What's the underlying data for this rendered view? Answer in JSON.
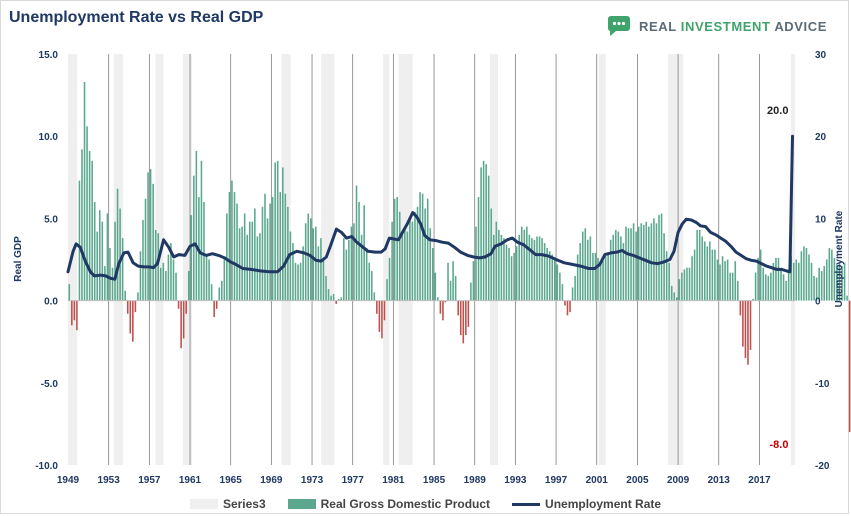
{
  "header": {
    "title": "Unemployment Rate vs Real GDP",
    "brand": {
      "w1": "REAL",
      "w2": "INVESTMENT",
      "w3": "ADVICE"
    }
  },
  "colors": {
    "recession": "#efefef",
    "gdp_positive": "#5ba88e",
    "gdp_negative": "#c0504d",
    "unemployment": "#1f3864",
    "brand_icon": "#3fa36b",
    "year_lines": "#7f7f7f"
  },
  "chart_data": {
    "type": "bar",
    "title": "Unemployment Rate vs Real GDP",
    "xlabel": "",
    "ylabel_left": "Real GDP",
    "ylabel_right": "Unemployment Rate",
    "x_range": [
      1949.0,
      2020.5
    ],
    "ylim_left": [
      -10,
      15
    ],
    "ylim_right": [
      -20,
      30
    ],
    "left_ticks": [
      {
        "value": 15,
        "label": "15.0"
      },
      {
        "value": 10,
        "label": "10.0"
      },
      {
        "value": 5,
        "label": "5.0"
      },
      {
        "value": 0,
        "label": "0.0"
      },
      {
        "value": -5,
        "label": "-5.0"
      },
      {
        "value": -10,
        "label": "-10.0"
      }
    ],
    "right_ticks": [
      {
        "value": 30,
        "label": "30"
      },
      {
        "value": 20,
        "label": "20"
      },
      {
        "value": 10,
        "label": "10"
      },
      {
        "value": 0,
        "label": "0"
      },
      {
        "value": -10,
        "label": "-10"
      },
      {
        "value": -20,
        "label": "-20"
      }
    ],
    "x_ticks": [
      "1949",
      "1953",
      "1957",
      "1961",
      "1965",
      "1969",
      "1973",
      "1977",
      "1981",
      "1985",
      "1989",
      "1993",
      "1997",
      "2001",
      "2005",
      "2009",
      "2013",
      "2017"
    ],
    "grid": "vertical lines every 4 years",
    "legend_position": "bottom",
    "legend": [
      "Series3",
      "Real Gross Domestic Product",
      "Unemployment Rate"
    ],
    "series": [
      {
        "name": "Series3",
        "kind": "recession shading",
        "periods": [
          [
            1949.0,
            1949.9
          ],
          [
            1953.5,
            1954.4
          ],
          [
            1957.6,
            1958.4
          ],
          [
            1960.3,
            1961.2
          ],
          [
            1970.0,
            1970.9
          ],
          [
            1973.9,
            1975.2
          ],
          [
            1980.0,
            1980.6
          ],
          [
            1981.5,
            1982.9
          ],
          [
            1990.5,
            1991.3
          ],
          [
            2001.2,
            2001.9
          ],
          [
            2008.0,
            2009.5
          ],
          [
            2020.1,
            2020.5
          ]
        ]
      },
      {
        "name": "Real Gross Domestic Product",
        "kind": "quarterly bars",
        "values": [
          1.0,
          -1.5,
          -1.2,
          -1.8,
          7.3,
          9.2,
          13.3,
          10.6,
          9.1,
          8.5,
          6.0,
          4.2,
          5.5,
          4.8,
          2.1,
          5.3,
          3.2,
          2.0,
          4.8,
          6.8,
          5.6,
          3.8,
          0.6,
          -0.8,
          -2.0,
          -2.5,
          -0.7,
          0.5,
          3.0,
          4.9,
          6.2,
          7.8,
          8.0,
          7.1,
          4.3,
          4.1,
          2.0,
          2.3,
          1.8,
          2.8,
          3.5,
          2.5,
          1.7,
          -0.5,
          -2.9,
          -2.3,
          -0.8,
          1.8,
          5.2,
          7.6,
          9.1,
          6.3,
          8.5,
          6.0,
          2.7,
          2.5,
          1.0,
          -1.0,
          -0.5,
          0.8,
          1.2,
          2.6,
          5.3,
          6.6,
          7.3,
          6.6,
          5.9,
          4.4,
          4.5,
          5.3,
          4.0,
          4.8,
          4.8,
          5.6,
          3.9,
          4.1,
          5.7,
          6.5,
          5.0,
          5.9,
          6.3,
          8.4,
          8.5,
          6.6,
          8.1,
          6.5,
          5.7,
          4.2,
          3.5,
          2.3,
          2.2,
          2.3,
          3.3,
          4.7,
          5.3,
          5.0,
          4.4,
          4.5,
          3.3,
          3.8,
          2.6,
          1.5,
          0.7,
          0.3,
          0.4,
          -0.2,
          0.1,
          0.2,
          3.8,
          3.1,
          3.7,
          4.5,
          4.7,
          7.0,
          6.0,
          4.0,
          5.8,
          3.2,
          2.3,
          1.8,
          0.5,
          -0.8,
          -1.9,
          -2.3,
          -1.2,
          1.3,
          2.6,
          4.8,
          6.2,
          6.3,
          5.4,
          4.2,
          4.3,
          4.2,
          5.0,
          4.8,
          5.4,
          5.7,
          6.6,
          6.5,
          5.6,
          6.2,
          4.4,
          3.2,
          1.7,
          0.2,
          -0.8,
          -1.2,
          -0.1,
          2.3,
          1.2,
          2.4,
          1.5,
          -0.9,
          -2.1,
          -2.6,
          -2.1,
          -1.6,
          1.1,
          2.4,
          4.5,
          6.3,
          8.1,
          8.5,
          8.3,
          7.6,
          5.6,
          4.0,
          4.8,
          4.3,
          4.0,
          3.8,
          3.4,
          3.2,
          2.7,
          2.9,
          3.3,
          4.0,
          4.5,
          4.3,
          4.5,
          4.0,
          3.8,
          3.7,
          3.9,
          3.9,
          3.8,
          3.5,
          3.2,
          3.0,
          2.8,
          2.6,
          2.2,
          1.7,
          1.0,
          -0.3,
          -0.9,
          -0.7,
          0.8,
          1.5,
          2.8,
          3.5,
          4.2,
          4.4,
          3.7,
          3.9,
          2.9,
          2.9,
          2.6,
          2.2,
          2.4,
          2.7,
          2.9,
          3.7,
          4.0,
          4.3,
          4.2,
          3.9,
          3.5,
          4.5,
          4.4,
          4.4,
          4.7,
          4.2,
          4.5,
          4.7,
          4.6,
          4.8,
          4.5,
          4.7,
          5.0,
          4.7,
          5.2,
          5.3,
          4.1,
          3.0,
          2.3,
          0.9,
          0.5,
          0.2,
          1.3,
          1.7,
          1.9,
          2.0,
          2.0,
          2.7,
          3.1,
          4.3,
          4.3,
          3.9,
          3.6,
          3.3,
          3.6,
          3.1,
          3.1,
          2.5,
          2.2,
          2.7,
          2.4,
          2.5,
          1.7,
          1.7,
          2.4,
          1.2,
          -0.9,
          -2.8,
          -3.5,
          -3.9,
          -3.0,
          0.1,
          1.7,
          2.6,
          3.1,
          2.0,
          1.6,
          1.5,
          1.7,
          2.3,
          2.6,
          2.6,
          1.9,
          1.6,
          1.2,
          1.8,
          2.7,
          2.3,
          2.5,
          2.3,
          3.0,
          3.3,
          3.2,
          2.8,
          2.3,
          1.5,
          1.4,
          2.0,
          1.8,
          2.1,
          2.5,
          3.2,
          3.1,
          2.6,
          2.2,
          2.3,
          2.1,
          2.3,
          0.3,
          -8.0
        ]
      },
      {
        "name": "Unemployment Rate",
        "kind": "line (right axis)",
        "points": [
          [
            1949.0,
            3.5
          ],
          [
            1949.5,
            6.0
          ],
          [
            1949.8,
            6.9
          ],
          [
            1950.2,
            6.5
          ],
          [
            1950.7,
            4.8
          ],
          [
            1951.2,
            3.5
          ],
          [
            1951.6,
            3.0
          ],
          [
            1952.2,
            3.1
          ],
          [
            1952.7,
            3.0
          ],
          [
            1953.2,
            2.7
          ],
          [
            1953.6,
            2.6
          ],
          [
            1954.0,
            4.5
          ],
          [
            1954.5,
            5.8
          ],
          [
            1954.9,
            5.9
          ],
          [
            1955.4,
            4.6
          ],
          [
            1955.9,
            4.2
          ],
          [
            1956.5,
            4.1
          ],
          [
            1957.0,
            4.1
          ],
          [
            1957.4,
            4.0
          ],
          [
            1957.8,
            4.5
          ],
          [
            1958.4,
            7.4
          ],
          [
            1958.9,
            6.5
          ],
          [
            1959.4,
            5.3
          ],
          [
            1959.9,
            5.6
          ],
          [
            1960.5,
            5.5
          ],
          [
            1961.0,
            6.6
          ],
          [
            1961.5,
            6.9
          ],
          [
            1962.0,
            5.8
          ],
          [
            1962.6,
            5.5
          ],
          [
            1963.2,
            5.7
          ],
          [
            1963.8,
            5.5
          ],
          [
            1964.4,
            5.2
          ],
          [
            1965.0,
            4.7
          ],
          [
            1965.5,
            4.4
          ],
          [
            1966.2,
            3.9
          ],
          [
            1967.0,
            3.8
          ],
          [
            1968.0,
            3.6
          ],
          [
            1968.8,
            3.5
          ],
          [
            1969.6,
            3.5
          ],
          [
            1970.2,
            4.2
          ],
          [
            1970.8,
            5.6
          ],
          [
            1971.5,
            6.0
          ],
          [
            1972.2,
            5.8
          ],
          [
            1972.8,
            5.5
          ],
          [
            1973.4,
            4.9
          ],
          [
            1973.9,
            4.8
          ],
          [
            1974.4,
            5.3
          ],
          [
            1974.8,
            6.6
          ],
          [
            1975.4,
            8.7
          ],
          [
            1975.9,
            8.3
          ],
          [
            1976.4,
            7.6
          ],
          [
            1976.9,
            7.8
          ],
          [
            1977.4,
            7.1
          ],
          [
            1977.9,
            6.6
          ],
          [
            1978.5,
            6.0
          ],
          [
            1979.2,
            5.9
          ],
          [
            1979.8,
            5.9
          ],
          [
            1980.2,
            6.3
          ],
          [
            1980.6,
            7.6
          ],
          [
            1981.0,
            7.5
          ],
          [
            1981.5,
            7.4
          ],
          [
            1981.9,
            8.3
          ],
          [
            1982.4,
            9.4
          ],
          [
            1982.9,
            10.7
          ],
          [
            1983.3,
            10.2
          ],
          [
            1983.7,
            9.3
          ],
          [
            1984.1,
            7.9
          ],
          [
            1984.6,
            7.4
          ],
          [
            1985.2,
            7.3
          ],
          [
            1985.8,
            7.1
          ],
          [
            1986.4,
            7.0
          ],
          [
            1987.0,
            6.5
          ],
          [
            1987.6,
            5.9
          ],
          [
            1988.3,
            5.5
          ],
          [
            1988.9,
            5.3
          ],
          [
            1989.5,
            5.2
          ],
          [
            1990.0,
            5.3
          ],
          [
            1990.6,
            5.7
          ],
          [
            1991.0,
            6.6
          ],
          [
            1991.6,
            6.9
          ],
          [
            1992.2,
            7.4
          ],
          [
            1992.7,
            7.6
          ],
          [
            1993.2,
            7.1
          ],
          [
            1993.8,
            6.8
          ],
          [
            1994.4,
            6.2
          ],
          [
            1995.0,
            5.6
          ],
          [
            1995.6,
            5.6
          ],
          [
            1996.3,
            5.4
          ],
          [
            1997.0,
            5.0
          ],
          [
            1997.8,
            4.6
          ],
          [
            1998.6,
            4.4
          ],
          [
            1999.4,
            4.2
          ],
          [
            2000.2,
            3.9
          ],
          [
            2000.8,
            3.9
          ],
          [
            2001.3,
            4.4
          ],
          [
            2001.8,
            5.6
          ],
          [
            2002.4,
            5.8
          ],
          [
            2003.0,
            5.9
          ],
          [
            2003.5,
            6.1
          ],
          [
            2004.0,
            5.7
          ],
          [
            2004.6,
            5.5
          ],
          [
            2005.2,
            5.2
          ],
          [
            2005.8,
            4.9
          ],
          [
            2006.4,
            4.6
          ],
          [
            2007.0,
            4.5
          ],
          [
            2007.6,
            4.7
          ],
          [
            2008.2,
            5.0
          ],
          [
            2008.6,
            6.0
          ],
          [
            2009.0,
            8.3
          ],
          [
            2009.4,
            9.3
          ],
          [
            2009.8,
            9.9
          ],
          [
            2010.3,
            9.8
          ],
          [
            2010.8,
            9.5
          ],
          [
            2011.2,
            9.1
          ],
          [
            2011.7,
            9.0
          ],
          [
            2012.2,
            8.3
          ],
          [
            2012.7,
            8.0
          ],
          [
            2013.2,
            7.6
          ],
          [
            2013.7,
            7.2
          ],
          [
            2014.2,
            6.6
          ],
          [
            2014.7,
            5.9
          ],
          [
            2015.2,
            5.5
          ],
          [
            2015.7,
            5.1
          ],
          [
            2016.2,
            4.9
          ],
          [
            2016.7,
            4.8
          ],
          [
            2017.2,
            4.5
          ],
          [
            2017.7,
            4.2
          ],
          [
            2018.2,
            4.0
          ],
          [
            2018.7,
            3.8
          ],
          [
            2019.2,
            3.8
          ],
          [
            2019.7,
            3.6
          ],
          [
            2020.0,
            3.5
          ],
          [
            2020.25,
            20.0
          ]
        ]
      }
    ],
    "annotations": [
      {
        "label": "20.0",
        "axis": "right",
        "x": 2020.25,
        "y": 20.0
      },
      {
        "label": "-8.0",
        "axis": "left",
        "x": 2020.25,
        "y": -8.0
      }
    ]
  }
}
